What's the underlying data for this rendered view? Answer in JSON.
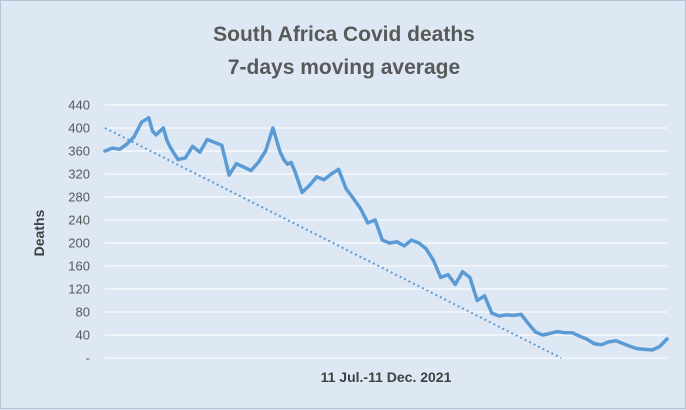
{
  "chart_data": {
    "type": "line",
    "title": [
      "South Africa Covid deaths",
      "7-days moving average"
    ],
    "xlabel": "11 Jul.-11 Dec. 2021",
    "ylabel": "Deaths",
    "ylim": [
      0,
      440
    ],
    "yticks": [
      {
        "value": 0,
        "label": "-"
      },
      {
        "value": 40,
        "label": "40"
      },
      {
        "value": 80,
        "label": "80"
      },
      {
        "value": 120,
        "label": "120"
      },
      {
        "value": 160,
        "label": "160"
      },
      {
        "value": 200,
        "label": "200"
      },
      {
        "value": 240,
        "label": "240"
      },
      {
        "value": 280,
        "label": "280"
      },
      {
        "value": 320,
        "label": "320"
      },
      {
        "value": 360,
        "label": "360"
      },
      {
        "value": 400,
        "label": "400"
      },
      {
        "value": 440,
        "label": "440"
      }
    ],
    "grid": true,
    "legend": "none",
    "series_color": "#5b9bd5",
    "trendline": {
      "style": "dotted",
      "start": 400,
      "end": 0,
      "end_day": 125
    },
    "x_range": [
      0,
      154
    ],
    "series": [
      {
        "x": [
          0,
          2,
          4,
          6,
          8,
          10,
          12,
          13,
          14,
          16,
          17,
          18,
          20,
          22,
          24,
          26,
          28,
          30,
          32,
          34,
          36,
          38,
          40,
          42,
          44,
          46,
          48,
          49,
          50,
          51,
          52,
          54,
          56,
          58,
          60,
          62,
          64,
          66,
          68,
          70,
          72,
          74,
          76,
          78,
          80,
          82,
          84,
          86,
          88,
          90,
          92,
          94,
          96,
          98,
          100,
          102,
          104,
          106,
          108,
          110,
          112,
          114,
          116,
          118,
          120,
          122,
          124,
          126,
          128,
          130,
          132,
          134,
          136,
          138,
          140,
          142,
          144,
          146,
          148,
          150,
          152,
          154
        ],
        "values": [
          360,
          365,
          363,
          372,
          385,
          410,
          418,
          395,
          388,
          400,
          378,
          365,
          345,
          348,
          368,
          358,
          380,
          375,
          370,
          318,
          338,
          332,
          326,
          340,
          360,
          400,
          358,
          345,
          337,
          340,
          325,
          288,
          300,
          315,
          310,
          320,
          328,
          295,
          278,
          260,
          235,
          240,
          205,
          200,
          202,
          195,
          205,
          200,
          190,
          170,
          140,
          145,
          128,
          150,
          140,
          100,
          108,
          78,
          73,
          75,
          74,
          76,
          60,
          45,
          40,
          43,
          46,
          44,
          44,
          38,
          33,
          25,
          23,
          28,
          30,
          25,
          20,
          16,
          15,
          14,
          20,
          33
        ]
      }
    ]
  }
}
